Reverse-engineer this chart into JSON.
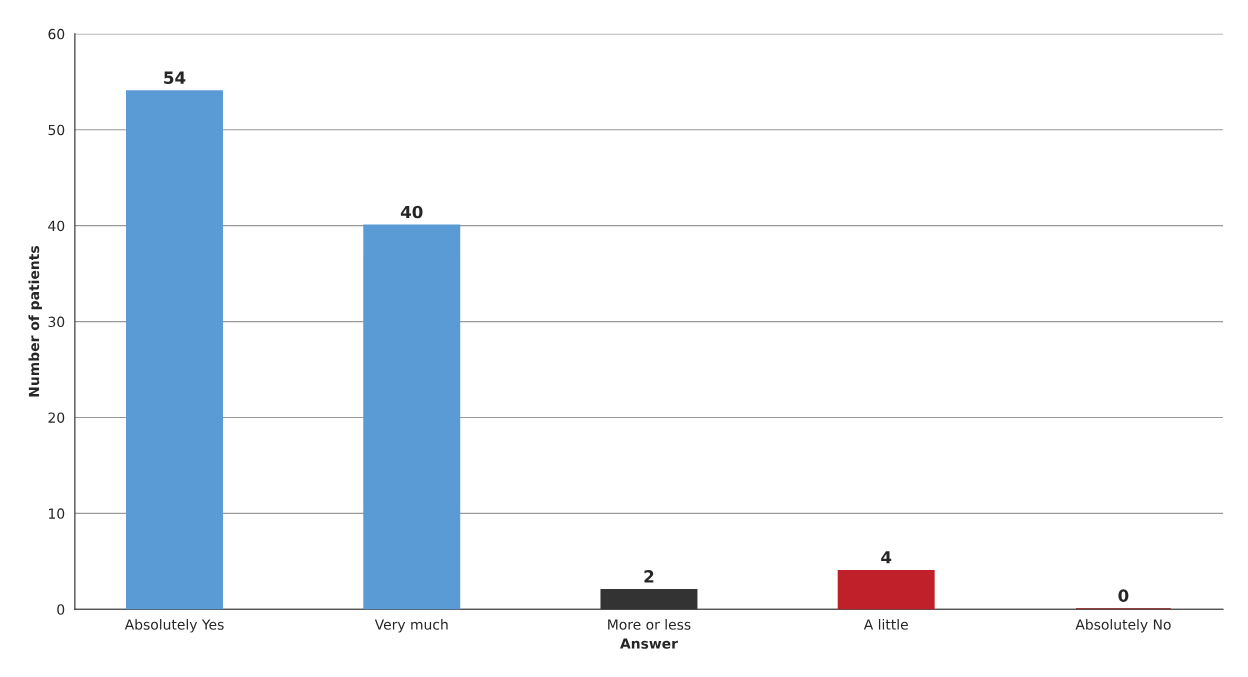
{
  "chart_data": {
    "type": "bar",
    "categories": [
      "Absolutely Yes",
      "Very much",
      "More or less",
      "A little",
      "Absolutely No"
    ],
    "values": [
      54,
      40,
      2,
      4,
      0
    ],
    "colors": [
      "#5b9bd5",
      "#5b9bd5",
      "#333333",
      "#c0202a",
      "#8b1a1a"
    ],
    "xlabel": "Answer",
    "ylabel": "Number of patients",
    "ylim": [
      0,
      60
    ],
    "yticks": [
      0,
      10,
      20,
      30,
      40,
      50,
      60
    ],
    "grid": "y",
    "data_labels": true
  }
}
